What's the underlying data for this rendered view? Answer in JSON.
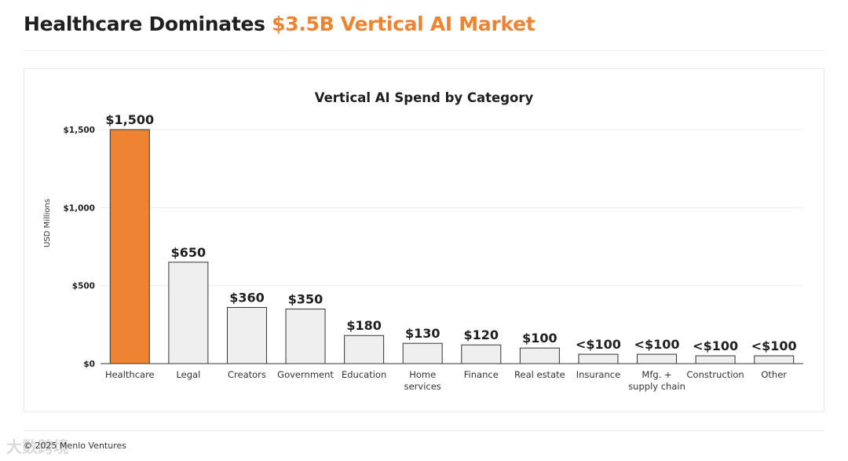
{
  "header": {
    "title_main": "Healthcare Dominates ",
    "title_accent": "$3.5B Vertical AI Market"
  },
  "footer": {
    "text": "© 2025 Menlo Ventures"
  },
  "watermark": {
    "text": "大数跨境"
  },
  "colors": {
    "accent": "#ee8432",
    "bar": "#efeff0",
    "bar_stroke": "#333333",
    "grid": "#ececec"
  },
  "chart_data": {
    "type": "bar",
    "title": "Vertical AI Spend by Category",
    "ylabel": "USD Millions",
    "xlabel": "",
    "ylim": [
      0,
      1500
    ],
    "yticks": [
      0,
      500,
      1000,
      1500
    ],
    "ytick_labels": [
      "$0",
      "$500",
      "$1,000",
      "$1,500"
    ],
    "grid": true,
    "highlight_index": 0,
    "categories": [
      "Healthcare",
      "Legal",
      "Creators",
      "Government",
      "Education",
      "Home services",
      "Finance",
      "Real estate",
      "Insurance",
      "Mfg. + supply chain",
      "Construction",
      "Other"
    ],
    "category_lines": [
      [
        "Healthcare"
      ],
      [
        "Legal"
      ],
      [
        "Creators"
      ],
      [
        "Government"
      ],
      [
        "Education"
      ],
      [
        "Home",
        "services"
      ],
      [
        "Finance"
      ],
      [
        "Real estate"
      ],
      [
        "Insurance"
      ],
      [
        "Mfg. +",
        "supply chain"
      ],
      [
        "Construction"
      ],
      [
        "Other"
      ]
    ],
    "values": [
      1500,
      650,
      360,
      350,
      180,
      130,
      120,
      100,
      60,
      60,
      50,
      50
    ],
    "value_labels": [
      "$1,500",
      "$650",
      "$360",
      "$350",
      "$180",
      "$130",
      "$120",
      "$100",
      "<$100",
      "<$100",
      "<$100",
      "<$100"
    ]
  }
}
